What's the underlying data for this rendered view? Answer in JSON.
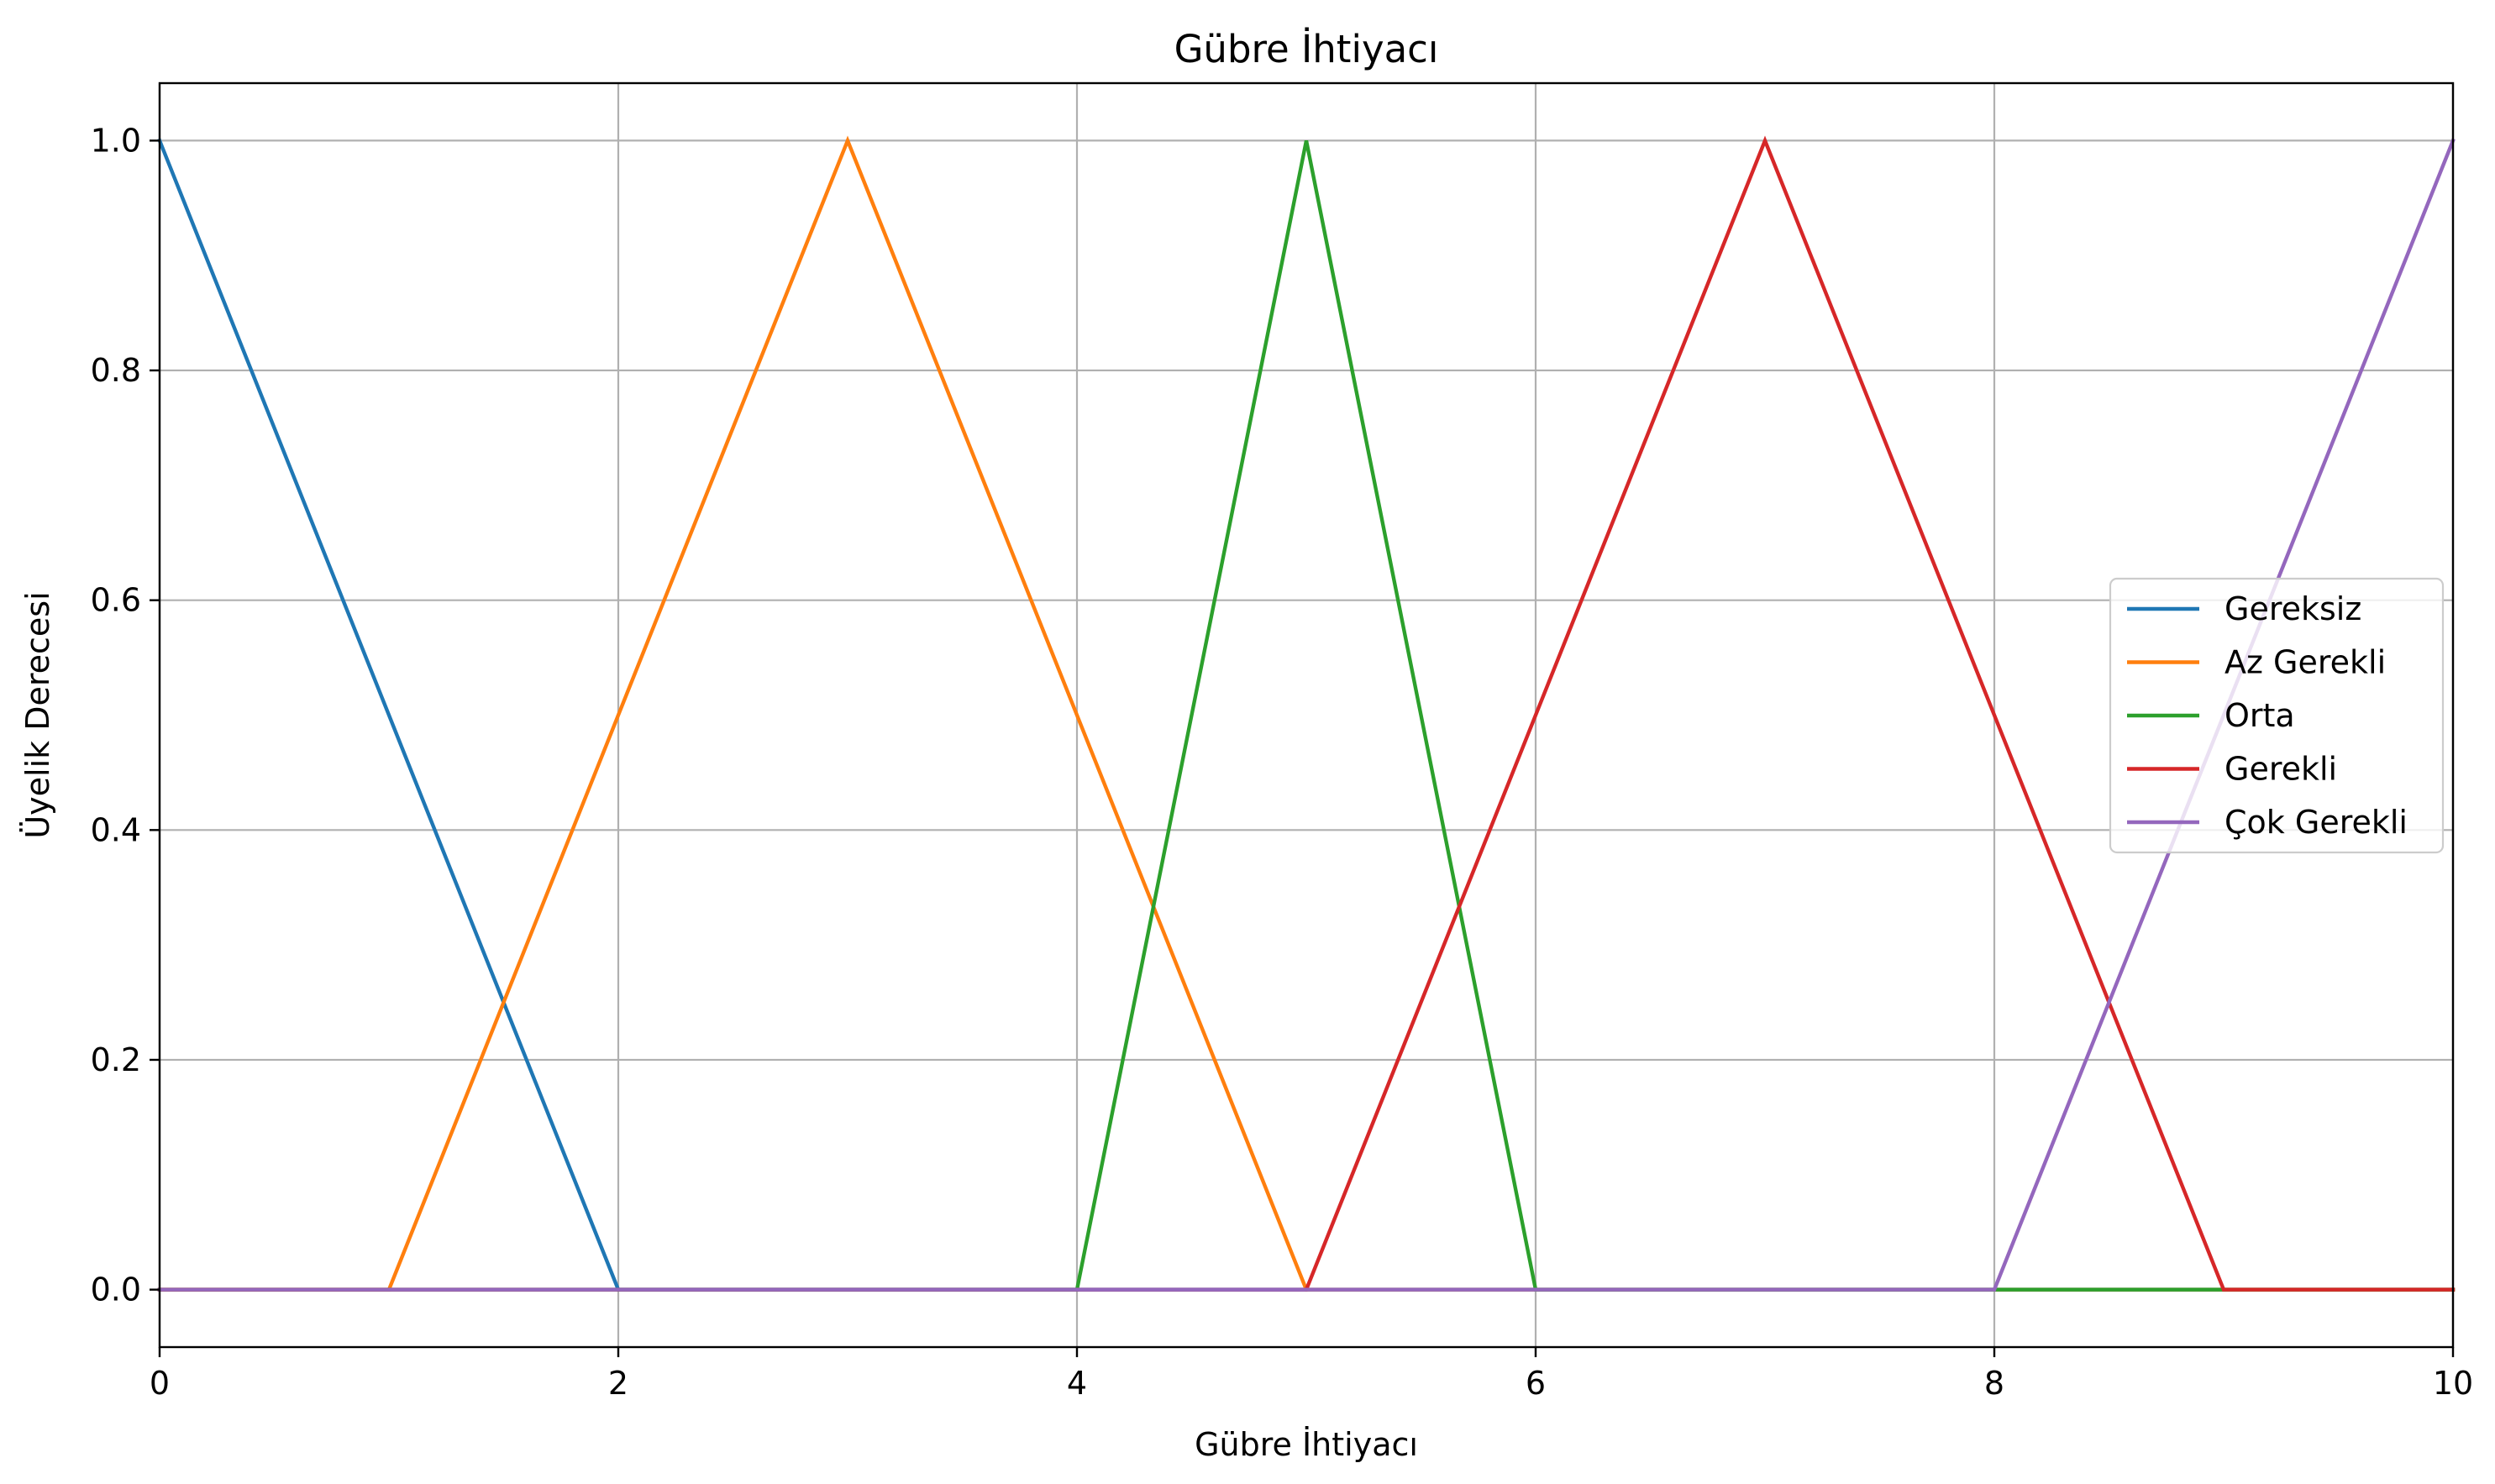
{
  "chart_data": {
    "type": "line",
    "title": "Gübre İhtiyacı",
    "xlabel": "Gübre İhtiyacı",
    "ylabel": "Üyelik Derecesi",
    "xlim": [
      0,
      10
    ],
    "ylim": [
      -0.05,
      1.05
    ],
    "xticks": [
      0,
      2,
      4,
      6,
      8,
      10
    ],
    "xtick_labels": [
      "0",
      "2",
      "4",
      "6",
      "8",
      "10"
    ],
    "yticks": [
      0.0,
      0.2,
      0.4,
      0.6,
      0.8,
      1.0
    ],
    "ytick_labels": [
      "0.0",
      "0.2",
      "0.4",
      "0.6",
      "0.8",
      "1.0"
    ],
    "grid": true,
    "legend_position": "center-right",
    "series": [
      {
        "name": "Gereksiz",
        "color": "#1f77b4",
        "x": [
          0,
          2,
          10
        ],
        "y": [
          1.0,
          0.0,
          0.0
        ]
      },
      {
        "name": "Az Gerekli",
        "color": "#ff7f0e",
        "x": [
          0,
          1,
          3,
          5,
          10
        ],
        "y": [
          0.0,
          0.0,
          1.0,
          0.0,
          0.0
        ]
      },
      {
        "name": "Orta",
        "color": "#2ca02c",
        "x": [
          0,
          4,
          5,
          6,
          10
        ],
        "y": [
          0.0,
          0.0,
          1.0,
          0.0,
          0.0
        ]
      },
      {
        "name": "Gerekli",
        "color": "#d62728",
        "x": [
          0,
          5,
          7,
          9,
          10
        ],
        "y": [
          0.0,
          0.0,
          1.0,
          0.0,
          0.0
        ]
      },
      {
        "name": "Çok Gerekli",
        "color": "#9467bd",
        "x": [
          0,
          8,
          10
        ],
        "y": [
          0.0,
          0.0,
          1.0
        ]
      }
    ]
  }
}
